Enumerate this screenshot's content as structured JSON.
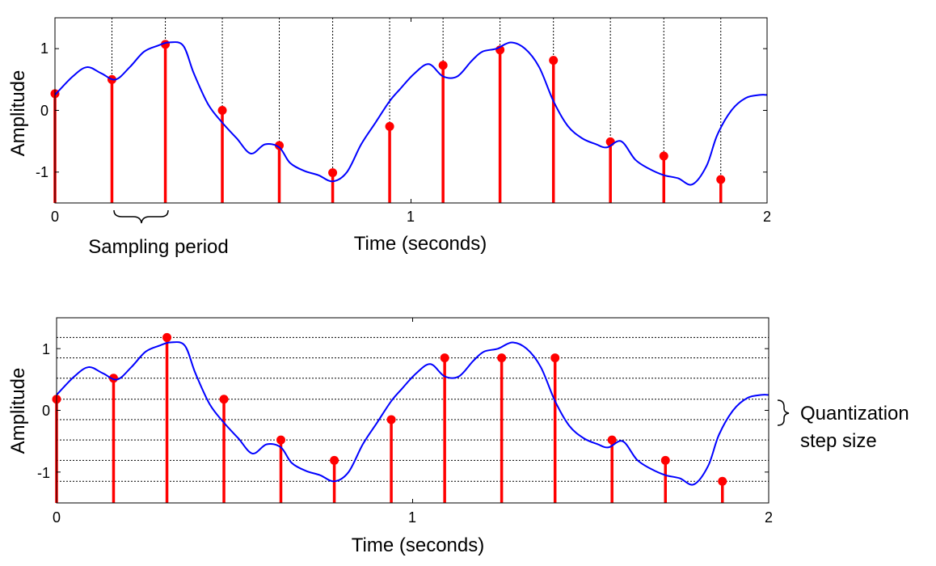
{
  "chart_data": [
    {
      "type": "line",
      "xlabel": "Time (seconds)",
      "ylabel": "Amplitude",
      "xlim": [
        0,
        2
      ],
      "ylim": [
        -1.5,
        1.5
      ],
      "x_ticks": [
        "0",
        "1",
        "2"
      ],
      "y_ticks": [
        "1",
        "0",
        "-1"
      ],
      "grid": "vertical dotted lines at each sample time",
      "annotation": "Sampling period",
      "series": [
        {
          "kind": "continuous",
          "color": "#0000ff",
          "x": [
            0,
            0.05,
            0.09,
            0.13,
            0.17,
            0.21,
            0.25,
            0.29,
            0.32,
            0.36,
            0.39,
            0.43,
            0.47,
            0.51,
            0.55,
            0.59,
            0.63,
            0.66,
            0.7,
            0.74,
            0.78,
            0.82,
            0.86,
            0.9,
            0.94,
            0.97,
            1.01,
            1.05,
            1.09,
            1.13,
            1.17,
            1.2,
            1.24,
            1.28,
            1.32,
            1.36,
            1.4,
            1.44,
            1.48,
            1.52,
            1.55,
            1.59,
            1.63,
            1.67,
            1.71,
            1.75,
            1.79,
            1.83,
            1.86,
            1.9,
            1.94,
            1.98,
            2.0
          ],
          "y": [
            0.25,
            0.55,
            0.7,
            0.6,
            0.5,
            0.7,
            0.95,
            1.05,
            1.1,
            1.05,
            0.6,
            0.1,
            -0.2,
            -0.45,
            -0.7,
            -0.55,
            -0.6,
            -0.85,
            -0.98,
            -1.05,
            -1.15,
            -1.0,
            -0.55,
            -0.2,
            0.15,
            0.35,
            0.6,
            0.75,
            0.55,
            0.55,
            0.8,
            0.95,
            1.0,
            1.1,
            1.0,
            0.7,
            0.15,
            -0.25,
            -0.45,
            -0.55,
            -0.6,
            -0.5,
            -0.8,
            -0.95,
            -1.05,
            -1.1,
            -1.2,
            -0.9,
            -0.4,
            0.0,
            0.2,
            0.25,
            0.25
          ]
        },
        {
          "kind": "samples",
          "color": "#ff0000",
          "x": [
            0,
            0.16,
            0.31,
            0.47,
            0.63,
            0.78,
            0.94,
            1.09,
            1.25,
            1.4,
            1.56,
            1.71,
            1.87
          ],
          "y": [
            0.27,
            0.5,
            1.07,
            0.0,
            -0.57,
            -1.01,
            -0.26,
            0.73,
            0.98,
            0.81,
            -0.51,
            -0.74,
            -1.12
          ]
        }
      ]
    },
    {
      "type": "line",
      "xlabel": "Time (seconds)",
      "ylabel": "Amplitude",
      "xlim": [
        0,
        2
      ],
      "ylim": [
        -1.5,
        1.5
      ],
      "x_ticks": [
        "0",
        "1",
        "2"
      ],
      "y_ticks": [
        "1",
        "0",
        "-1"
      ],
      "grid": "horizontal dotted lines at each quantization level",
      "quantization_levels": [
        -1.15,
        -0.81,
        -0.48,
        -0.15,
        0.18,
        0.52,
        0.85,
        1.18
      ],
      "annotation": [
        "Quantization",
        "step size"
      ],
      "series": [
        {
          "kind": "continuous",
          "color": "#0000ff",
          "x": [
            0,
            0.05,
            0.09,
            0.13,
            0.17,
            0.21,
            0.25,
            0.29,
            0.32,
            0.36,
            0.39,
            0.43,
            0.47,
            0.51,
            0.55,
            0.59,
            0.63,
            0.66,
            0.7,
            0.74,
            0.78,
            0.82,
            0.86,
            0.9,
            0.94,
            0.97,
            1.01,
            1.05,
            1.09,
            1.13,
            1.17,
            1.2,
            1.24,
            1.28,
            1.32,
            1.36,
            1.4,
            1.44,
            1.48,
            1.52,
            1.55,
            1.59,
            1.63,
            1.67,
            1.71,
            1.75,
            1.79,
            1.83,
            1.86,
            1.9,
            1.94,
            1.98,
            2.0
          ],
          "y": [
            0.25,
            0.55,
            0.7,
            0.6,
            0.5,
            0.7,
            0.95,
            1.05,
            1.1,
            1.05,
            0.6,
            0.1,
            -0.2,
            -0.45,
            -0.7,
            -0.55,
            -0.6,
            -0.85,
            -0.98,
            -1.05,
            -1.15,
            -1.0,
            -0.55,
            -0.2,
            0.15,
            0.35,
            0.6,
            0.75,
            0.55,
            0.55,
            0.8,
            0.95,
            1.0,
            1.1,
            1.0,
            0.7,
            0.15,
            -0.25,
            -0.45,
            -0.55,
            -0.6,
            -0.5,
            -0.8,
            -0.95,
            -1.05,
            -1.1,
            -1.2,
            -0.9,
            -0.4,
            0.0,
            0.2,
            0.25,
            0.25
          ]
        },
        {
          "kind": "quantized-samples",
          "color": "#ff0000",
          "x": [
            0,
            0.16,
            0.31,
            0.47,
            0.63,
            0.78,
            0.94,
            1.09,
            1.25,
            1.4,
            1.56,
            1.71,
            1.87
          ],
          "y": [
            0.18,
            0.52,
            1.18,
            0.18,
            -0.48,
            -0.81,
            -0.15,
            0.85,
            0.85,
            0.85,
            -0.48,
            -0.81,
            -1.15
          ]
        }
      ]
    }
  ]
}
